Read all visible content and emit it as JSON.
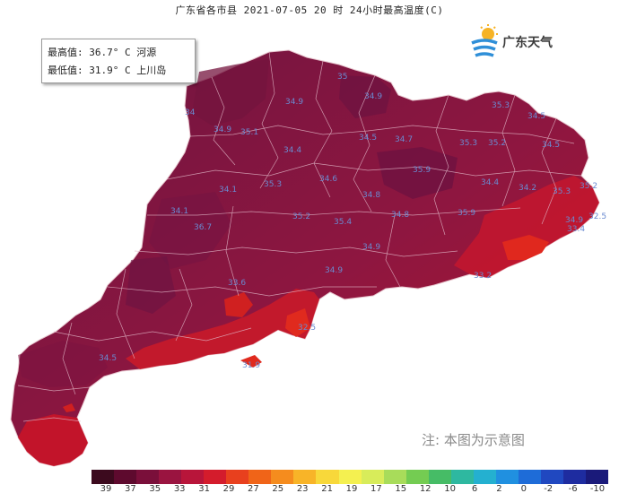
{
  "title": "广东省各市县 2021-07-05 20 时 24小时最高温度(C)",
  "info": {
    "max_line": "最高值: 36.7° C 河源",
    "min_line": "最低值: 31.9° C 上川岛"
  },
  "logo": {
    "text": "广东天气",
    "icon": "sun-cloud-logo-icon"
  },
  "note": "注: 本图为示意图",
  "stations": [
    "34",
    "34.9",
    "35.1",
    "34.9",
    "35",
    "34.9",
    "35.3",
    "34.5",
    "34.4",
    "34.6",
    "34.5",
    "34.7",
    "35.9",
    "35.3",
    "35.2",
    "34.5",
    "34.2",
    "35.3",
    "35.2",
    "34.9",
    "33.4",
    "32.5",
    "34.4",
    "34.8",
    "34.8",
    "35.9",
    "35.3",
    "34.1",
    "35.2",
    "34.1",
    "36.7",
    "35.4",
    "34.9",
    "33.2",
    "34.9",
    "32.5",
    "31.9",
    "33.6",
    "34.5"
  ],
  "legend": {
    "colors": [
      "#3c0a1e",
      "#5e0a2e",
      "#7a0f3a",
      "#9a1440",
      "#b8153a",
      "#d41c2c",
      "#e8401e",
      "#f06418",
      "#f58c1e",
      "#f8b428",
      "#f8d83a",
      "#f4f050",
      "#d8ec5a",
      "#a8dc5a",
      "#74cc52",
      "#46bc66",
      "#2eb8a0",
      "#24b0d0",
      "#2090e0",
      "#1e6cd8",
      "#2048c0",
      "#1e2ca0",
      "#1a1a7a"
    ],
    "ticks": [
      "39",
      "37",
      "35",
      "33",
      "31",
      "29",
      "27",
      "25",
      "23",
      "21",
      "19",
      "17",
      "15",
      "12",
      "10",
      "6",
      "2",
      "0",
      "-2",
      "-6",
      "-10"
    ]
  }
}
